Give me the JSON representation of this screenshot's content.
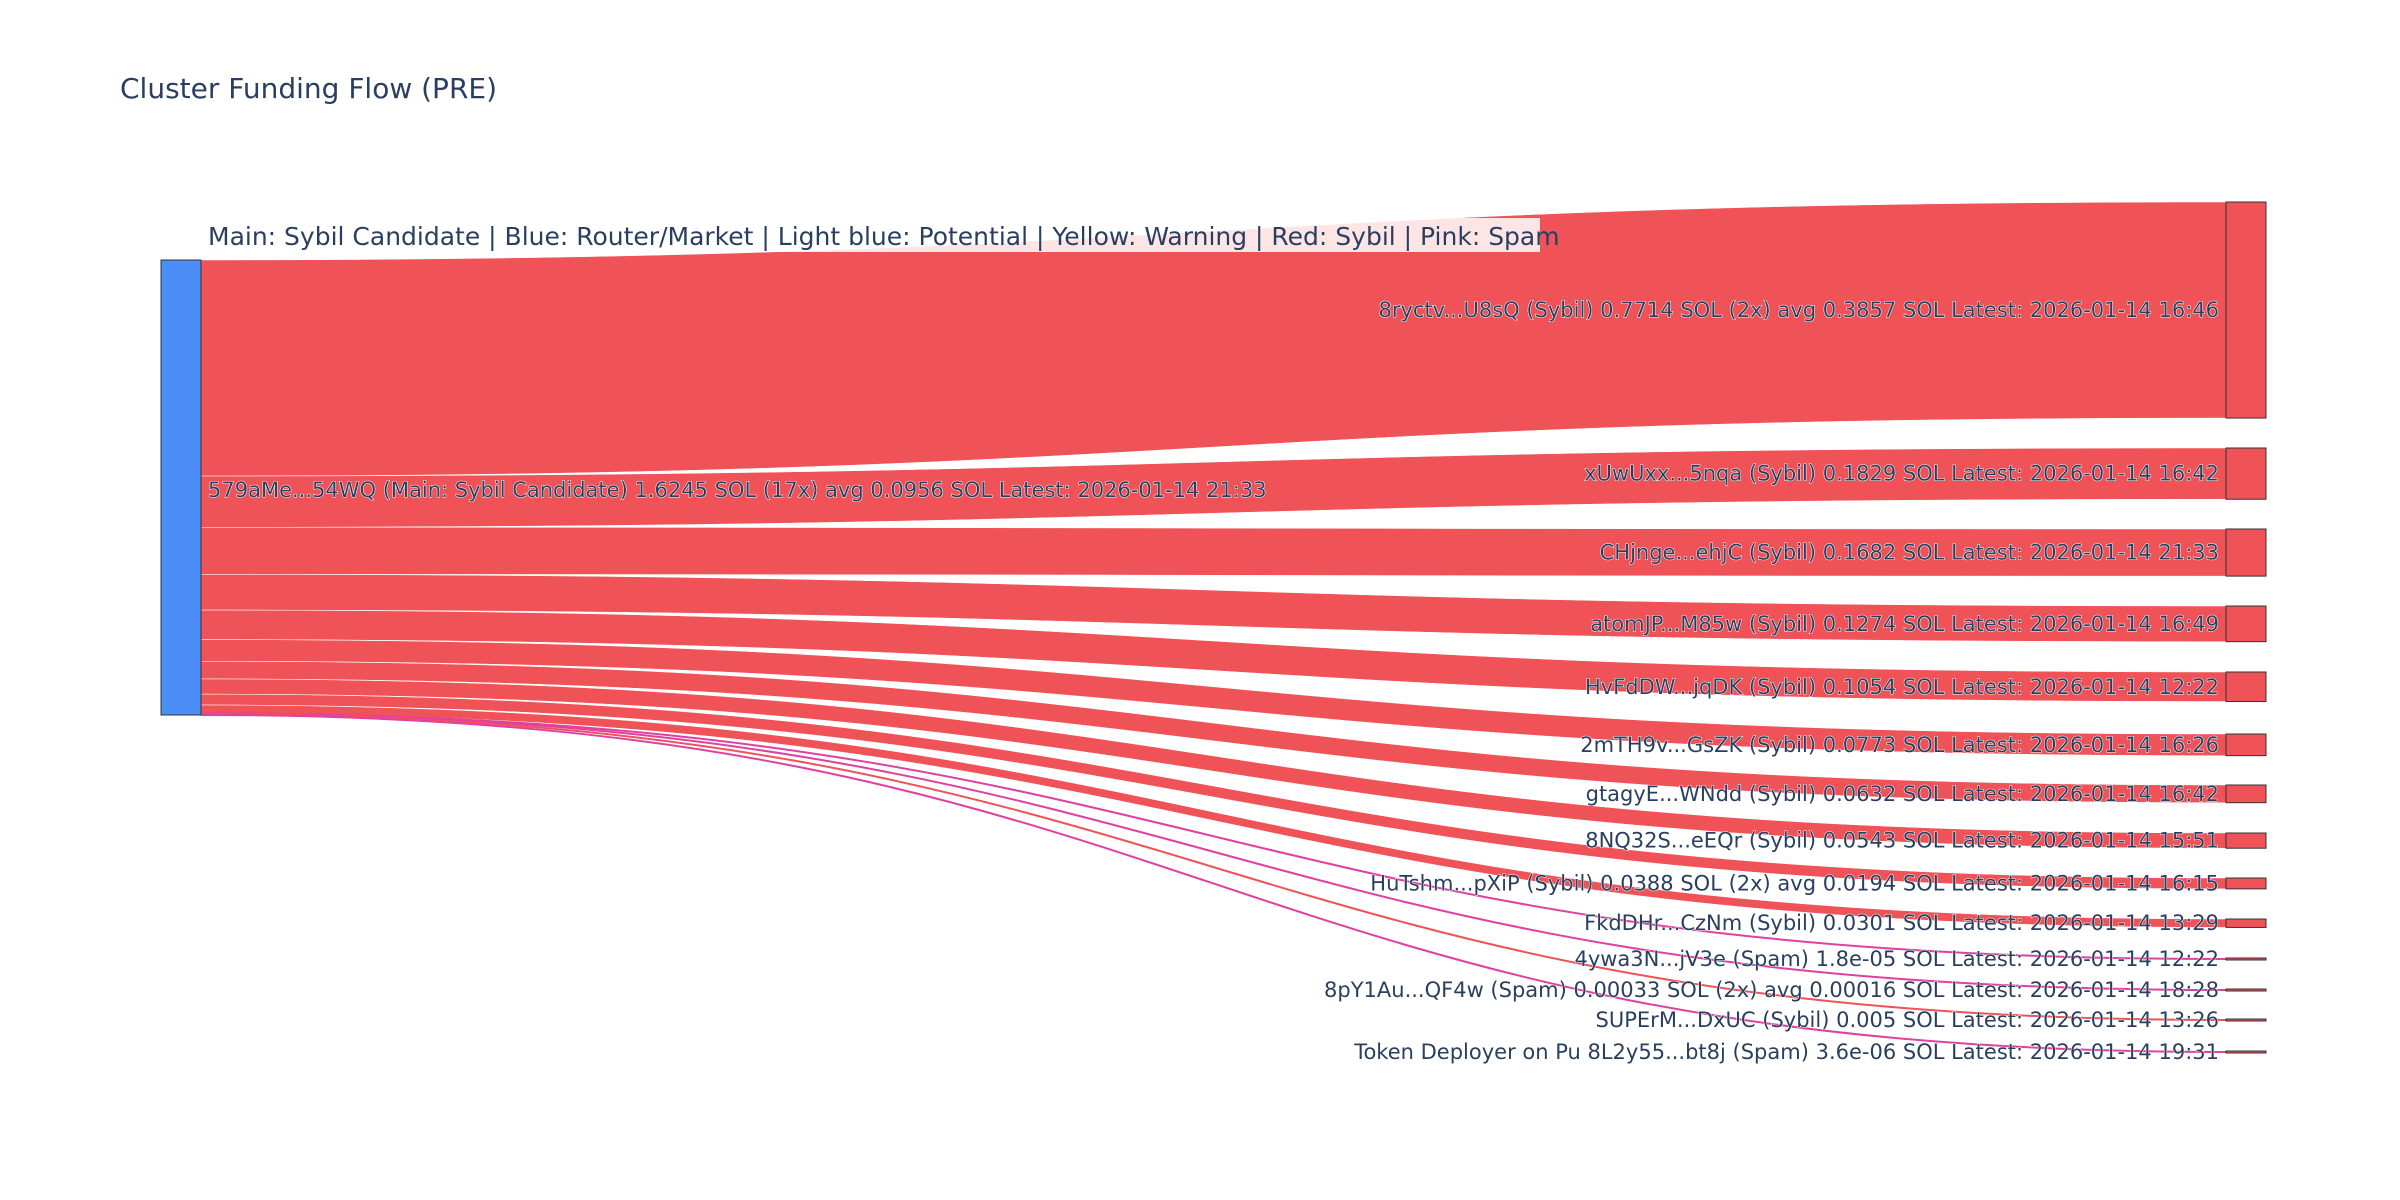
{
  "chart_data": {
    "type": "sankey",
    "title": "Cluster Funding Flow (PRE)",
    "legend_note": "Main: Sybil Candidate  |  Blue: Router/Market | Light blue: Potential | Yellow: Warning | Red: Sybil | Pink: Spam",
    "colors": {
      "main_node": "#4c8ef7",
      "sybil_node": "#ef5257",
      "sybil_link": "#ef5257",
      "spam_link": "#e040a0",
      "node_stroke": "#333333"
    },
    "source": {
      "label": "579aMe...54WQ (Main: Sybil Candidate) 1.6245 SOL (17x) avg 0.0956 SOL Latest: 2026-01-14 21:33",
      "total_sol": 1.6245
    },
    "targets": [
      {
        "label": "8ryctv...U8sQ (Sybil) 0.7714 SOL (2x) avg 0.3857 SOL Latest: 2026-01-14 16:46",
        "value": 0.7714,
        "category": "Sybil"
      },
      {
        "label": "xUwUxx...5nqa (Sybil) 0.1829 SOL Latest: 2026-01-14 16:42",
        "value": 0.1829,
        "category": "Sybil"
      },
      {
        "label": "CHjnge...ehjC (Sybil) 0.1682 SOL Latest: 2026-01-14 21:33",
        "value": 0.1682,
        "category": "Sybil"
      },
      {
        "label": "atomJP...M85w (Sybil) 0.1274 SOL Latest: 2026-01-14 16:49",
        "value": 0.1274,
        "category": "Sybil"
      },
      {
        "label": "HvFdDW...jqDK (Sybil) 0.1054 SOL Latest: 2026-01-14 12:22",
        "value": 0.1054,
        "category": "Sybil"
      },
      {
        "label": "2mTH9v...GsZK (Sybil) 0.0773 SOL Latest: 2026-01-14 16:26",
        "value": 0.0773,
        "category": "Sybil"
      },
      {
        "label": "gtagyE...WNdd (Sybil) 0.0632 SOL Latest: 2026-01-14 16:42",
        "value": 0.0632,
        "category": "Sybil"
      },
      {
        "label": "8NQ32S...eEQr (Sybil) 0.0543 SOL Latest: 2026-01-14 15:51",
        "value": 0.0543,
        "category": "Sybil"
      },
      {
        "label": "HuTshm...pXiP (Sybil) 0.0388 SOL (2x) avg 0.0194 SOL Latest: 2026-01-14 16:15",
        "value": 0.0388,
        "category": "Sybil"
      },
      {
        "label": "FkdDHr...CzNm (Sybil) 0.0301 SOL Latest: 2026-01-14 13:29",
        "value": 0.0301,
        "category": "Sybil"
      },
      {
        "label": "4ywa3N...jV3e (Spam) 1.8e-05 SOL Latest: 2026-01-14 12:22",
        "value": 1.8e-05,
        "category": "Spam"
      },
      {
        "label": "8pY1Au...QF4w (Spam) 0.00033 SOL (2x) avg 0.00016 SOL Latest: 2026-01-14 18:28",
        "value": 0.00033,
        "category": "Spam"
      },
      {
        "label": "SUPErM...DxUC (Sybil) 0.005 SOL Latest: 2026-01-14 13:26",
        "value": 0.005,
        "category": "Sybil"
      },
      {
        "label": "Token Deployer on Pu 8L2y55...bt8j (Spam) 3.6e-06 SOL Latest: 2026-01-14 19:31",
        "value": 3.6e-06,
        "category": "Spam"
      }
    ]
  }
}
